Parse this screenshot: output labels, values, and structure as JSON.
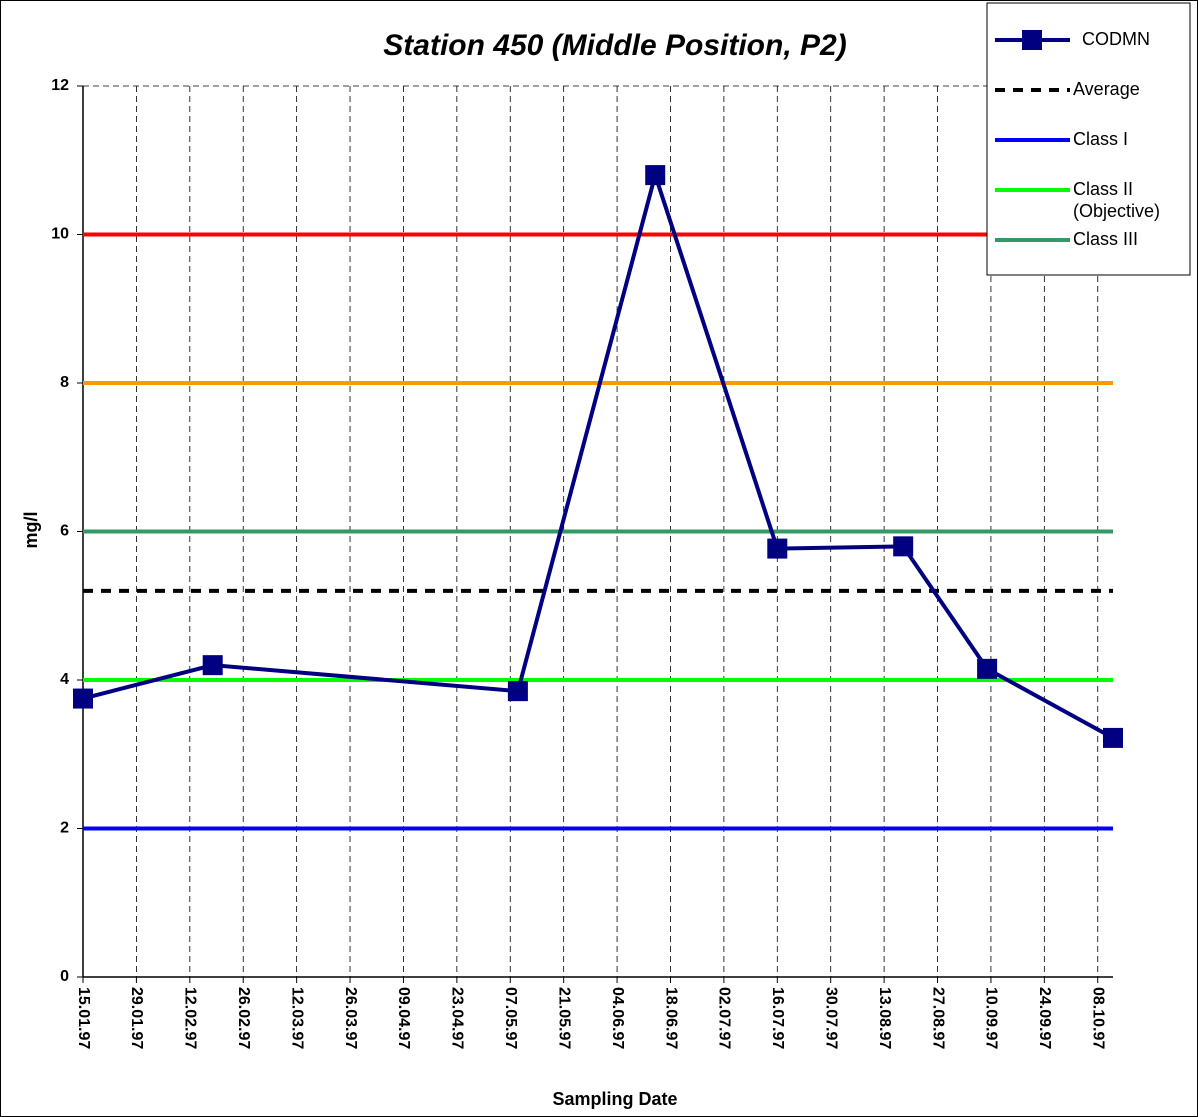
{
  "chart_data": {
    "type": "line",
    "title": "Station 450 (Middle Position, P2)",
    "x_label": "Sampling Date",
    "y_label": "mg/l",
    "x": [
      "1997-01-15",
      "1997-02-18",
      "1997-05-09",
      "1997-06-14",
      "1997-07-16",
      "1997-08-18",
      "1997-09-09",
      "1997-10-12"
    ],
    "series": [
      {
        "name": "CODMN",
        "color": "#000080",
        "values": [
          3.75,
          4.2,
          3.85,
          10.8,
          5.77,
          5.8,
          4.15,
          3.22
        ]
      }
    ],
    "reference_lines": [
      {
        "name": "Average",
        "value": 5.2,
        "color": "#000000",
        "style": "dashed"
      },
      {
        "name": "Class I",
        "value": 2,
        "color": "#0000ff",
        "style": "solid"
      },
      {
        "name": "Class II (Objective)",
        "value": 4,
        "color": "#00ff00",
        "style": "solid"
      },
      {
        "name": "Class III",
        "value": 6,
        "color": "#339966",
        "style": "solid"
      },
      {
        "value": 8,
        "color": "#ff9900",
        "style": "solid"
      },
      {
        "value": 10,
        "color": "#ff0000",
        "style": "solid"
      }
    ],
    "xlim": [
      "1997-01-15",
      "1997-10-12"
    ],
    "xticks": [
      {
        "value": "1997-01-15",
        "label": "15.01.97"
      },
      {
        "value": "1997-01-29",
        "label": "29.01.97"
      },
      {
        "value": "1997-02-12",
        "label": "12.02.97"
      },
      {
        "value": "1997-02-26",
        "label": "26.02.97"
      },
      {
        "value": "1997-03-12",
        "label": "12.03.97"
      },
      {
        "value": "1997-03-26",
        "label": "26.03.97"
      },
      {
        "value": "1997-04-09",
        "label": "09.04.97"
      },
      {
        "value": "1997-04-23",
        "label": "23.04.97"
      },
      {
        "value": "1997-05-07",
        "label": "07.05.97"
      },
      {
        "value": "1997-05-21",
        "label": "21.05.97"
      },
      {
        "value": "1997-06-04",
        "label": "04.06.97"
      },
      {
        "value": "1997-06-18",
        "label": "18.06.97"
      },
      {
        "value": "1997-07-02",
        "label": "02.07.97"
      },
      {
        "value": "1997-07-16",
        "label": "16.07.97"
      },
      {
        "value": "1997-07-30",
        "label": "30.07.97"
      },
      {
        "value": "1997-08-13",
        "label": "13.08.97"
      },
      {
        "value": "1997-08-27",
        "label": "27.08.97"
      },
      {
        "value": "1997-09-10",
        "label": "10.09.97"
      },
      {
        "value": "1997-09-24",
        "label": "24.09.97"
      },
      {
        "value": "1997-10-08",
        "label": "08.10.97"
      }
    ],
    "ylim": [
      0,
      12
    ],
    "yticks": [
      0,
      2,
      4,
      6,
      8,
      10,
      12
    ],
    "grid": true
  }
}
